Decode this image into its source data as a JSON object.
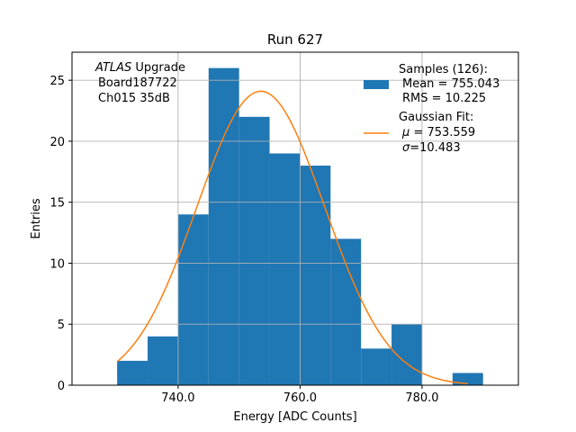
{
  "chart_data": {
    "type": "histogram",
    "title": "Run 627",
    "xlabel": "Energy [ADC Counts]",
    "ylabel": "Entries",
    "xlim": [
      722.6,
      795.8
    ],
    "ylim": [
      0,
      27.3
    ],
    "grid": true,
    "x_ticks": [
      740,
      760,
      780
    ],
    "x_tick_labels": [
      "740.0",
      "760.0",
      "780.0"
    ],
    "y_ticks": [
      0,
      5,
      10,
      15,
      20,
      25
    ],
    "y_tick_labels": [
      "0",
      "5",
      "10",
      "15",
      "20",
      "25"
    ],
    "bins": [
      {
        "start": 730.0,
        "end": 735.0,
        "count": 2
      },
      {
        "start": 735.0,
        "end": 740.0,
        "count": 4
      },
      {
        "start": 740.0,
        "end": 745.0,
        "count": 14
      },
      {
        "start": 745.0,
        "end": 750.0,
        "count": 26
      },
      {
        "start": 750.0,
        "end": 755.0,
        "count": 22
      },
      {
        "start": 755.0,
        "end": 760.0,
        "count": 19
      },
      {
        "start": 760.0,
        "end": 765.0,
        "count": 18
      },
      {
        "start": 765.0,
        "end": 770.0,
        "count": 12
      },
      {
        "start": 770.0,
        "end": 775.0,
        "count": 3
      },
      {
        "start": 775.0,
        "end": 780.0,
        "count": 5
      },
      {
        "start": 780.0,
        "end": 785.0,
        "count": 0
      },
      {
        "start": 785.0,
        "end": 790.0,
        "count": 1
      }
    ],
    "fit": {
      "name": "Gaussian Fit",
      "mu": 753.559,
      "sigma": 10.483,
      "amplitude": 24.1,
      "x_range": [
        730.0,
        787.5
      ]
    },
    "annotation": {
      "experiment": "ATLAS",
      "experiment_suffix": " Upgrade",
      "board": "Board187722",
      "channel": "Ch015 35dB"
    },
    "legend": {
      "position": "top-right",
      "samples_title": "Samples (126):",
      "samples_mean": "Mean = 755.043",
      "samples_rms": "RMS = 10.225",
      "fit_title": "Gaussian Fit:",
      "fit_mu_symbol": "μ",
      "fit_mu_value": " = 753.559",
      "fit_sigma_symbol": "σ",
      "fit_sigma_value": "=10.483"
    },
    "colors": {
      "bars": "#1f77b4",
      "fit": "#ff7f0e",
      "grid": "#b0b0b0"
    }
  }
}
